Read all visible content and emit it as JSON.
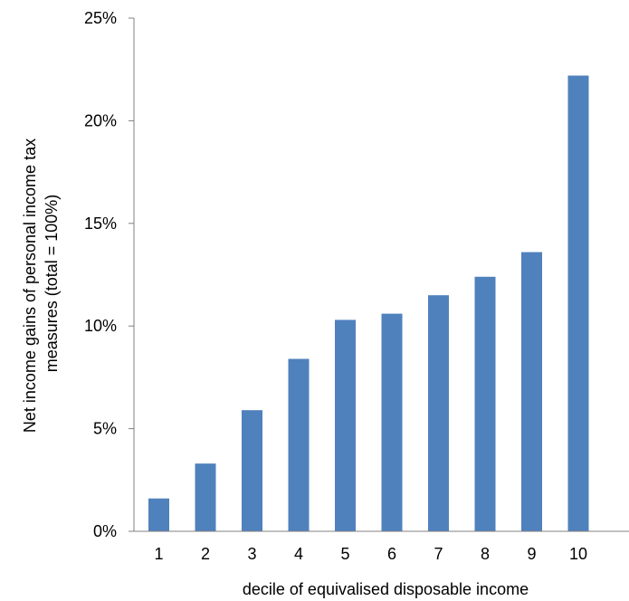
{
  "chart_data": {
    "type": "bar",
    "categories": [
      "1",
      "2",
      "3",
      "4",
      "5",
      "6",
      "7",
      "8",
      "9",
      "10"
    ],
    "values": [
      1.6,
      3.3,
      5.9,
      8.4,
      10.3,
      10.6,
      11.5,
      12.4,
      13.6,
      22.2
    ],
    "ylim": [
      0,
      25
    ],
    "yticks": [
      0,
      5,
      10,
      15,
      20,
      25
    ],
    "ytick_labels": [
      "0%",
      "5%",
      "10%",
      "15%",
      "20%",
      "25%"
    ],
    "xlabel": "decile of equivalised disposable income",
    "ylabel_lines": [
      "Net income gains of personal income tax",
      "measures (total = 100%)"
    ],
    "grid": false,
    "bar_color": "#4f81bd",
    "axis_color": "#808080"
  }
}
